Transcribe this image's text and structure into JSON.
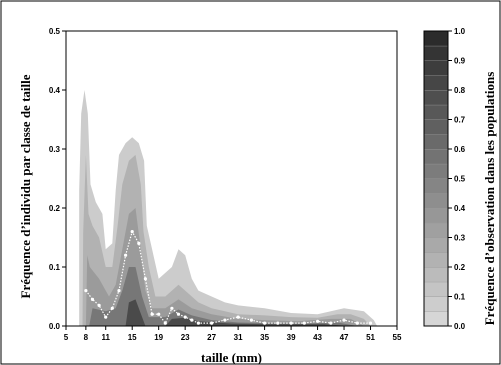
{
  "chart_data": {
    "type": "heatmap",
    "xlabel": "taille (mm)",
    "ylabel": "Fréquence d’individu par classe de taille",
    "colorbar_label": "Fréquence d’observation dans les populations",
    "xlim": [
      5,
      55
    ],
    "ylim": [
      0,
      0.5
    ],
    "x_ticks": [
      5,
      8,
      11,
      15,
      19,
      23,
      27,
      31,
      35,
      39,
      43,
      47,
      51,
      55
    ],
    "y_ticks": [
      0,
      0.1,
      0.2,
      0.3,
      0.4,
      0.5
    ],
    "y_tick_labels": [
      "0.0",
      "0.1",
      "0.2",
      "0.3",
      "0.4",
      "0.5"
    ],
    "colorbar_ticks": [
      "0.0",
      "0.1",
      "0.2",
      "0.3",
      "0.4",
      "0.5",
      "0.6",
      "0.7",
      "0.8",
      "0.9",
      "1.0"
    ],
    "colorbar_range": [
      0,
      1
    ],
    "density_regions": [
      {
        "level": 0.08,
        "points": [
          [
            7,
            0
          ],
          [
            7,
            0.23
          ],
          [
            7.3,
            0.36
          ],
          [
            7.8,
            0.4
          ],
          [
            8.3,
            0.36
          ],
          [
            8.7,
            0.24
          ],
          [
            9.5,
            0.21
          ],
          [
            10.5,
            0.19
          ],
          [
            11,
            0.13
          ],
          [
            12,
            0.14
          ],
          [
            12.5,
            0.23
          ],
          [
            13,
            0.29
          ],
          [
            14,
            0.31
          ],
          [
            15,
            0.32
          ],
          [
            16,
            0.31
          ],
          [
            16.8,
            0.28
          ],
          [
            17.2,
            0.17
          ],
          [
            18,
            0.13
          ],
          [
            19,
            0.08
          ],
          [
            20,
            0.09
          ],
          [
            21,
            0.1
          ],
          [
            22,
            0.13
          ],
          [
            23,
            0.12
          ],
          [
            24,
            0.08
          ],
          [
            25,
            0.06
          ],
          [
            27,
            0.05
          ],
          [
            29,
            0.04
          ],
          [
            31,
            0.035
          ],
          [
            35,
            0.03
          ],
          [
            39,
            0.022
          ],
          [
            43,
            0.02
          ],
          [
            47,
            0.03
          ],
          [
            50,
            0.025
          ],
          [
            51.5,
            0.01
          ],
          [
            52,
            0
          ]
        ]
      },
      {
        "level": 0.22,
        "points": [
          [
            7.5,
            0
          ],
          [
            7.6,
            0.16
          ],
          [
            8,
            0.29
          ],
          [
            8.4,
            0.19
          ],
          [
            9,
            0.17
          ],
          [
            10,
            0.15
          ],
          [
            11,
            0.1
          ],
          [
            12,
            0.1
          ],
          [
            12.8,
            0.17
          ],
          [
            13.5,
            0.24
          ],
          [
            14.5,
            0.28
          ],
          [
            15.5,
            0.29
          ],
          [
            16.3,
            0.24
          ],
          [
            16.7,
            0.16
          ],
          [
            17.5,
            0.1
          ],
          [
            18.5,
            0.05
          ],
          [
            20,
            0.05
          ],
          [
            21,
            0.06
          ],
          [
            22,
            0.07
          ],
          [
            23,
            0.06
          ],
          [
            25,
            0.04
          ],
          [
            27,
            0.03
          ],
          [
            31,
            0.02
          ],
          [
            35,
            0.018
          ],
          [
            39,
            0.015
          ],
          [
            43,
            0.014
          ],
          [
            46,
            0.02
          ],
          [
            48,
            0.02
          ],
          [
            50,
            0.012
          ],
          [
            51,
            0
          ]
        ]
      },
      {
        "level": 0.35,
        "points": [
          [
            8,
            0
          ],
          [
            8.2,
            0.12
          ],
          [
            8.6,
            0.1
          ],
          [
            10,
            0.08
          ],
          [
            11.5,
            0.05
          ],
          [
            12.5,
            0.07
          ],
          [
            13.5,
            0.13
          ],
          [
            14.5,
            0.19
          ],
          [
            15.5,
            0.2
          ],
          [
            16.3,
            0.13
          ],
          [
            17,
            0.06
          ],
          [
            18,
            0.03
          ],
          [
            20,
            0.03
          ],
          [
            22,
            0.045
          ],
          [
            24,
            0.03
          ],
          [
            27,
            0.02
          ],
          [
            31,
            0.012
          ],
          [
            35,
            0.01
          ],
          [
            40,
            0.008
          ],
          [
            45,
            0.012
          ],
          [
            48,
            0.012
          ],
          [
            50,
            0
          ]
        ]
      },
      {
        "level": 0.55,
        "points": [
          [
            8.5,
            0
          ],
          [
            9,
            0.03
          ],
          [
            11,
            0.025
          ],
          [
            12.5,
            0.03
          ],
          [
            13.5,
            0.06
          ],
          [
            14.5,
            0.1
          ],
          [
            15.5,
            0.1
          ],
          [
            16.5,
            0.05
          ],
          [
            17.5,
            0.015
          ],
          [
            20,
            0.015
          ],
          [
            22,
            0.028
          ],
          [
            24,
            0.018
          ],
          [
            27,
            0.01
          ],
          [
            31,
            0.006
          ],
          [
            35,
            0.005
          ],
          [
            41,
            0.004
          ],
          [
            46,
            0.006
          ],
          [
            49,
            0
          ]
        ]
      },
      {
        "level": 0.8,
        "points": [
          [
            14,
            0
          ],
          [
            14.5,
            0.04
          ],
          [
            15.5,
            0.045
          ],
          [
            16.5,
            0.015
          ],
          [
            17,
            0
          ],
          [
            20,
            0
          ],
          [
            21,
            0.012
          ],
          [
            23,
            0.014
          ],
          [
            25,
            0.008
          ],
          [
            30,
            0.004
          ],
          [
            36,
            0.003
          ],
          [
            44,
            0.003
          ],
          [
            48,
            0
          ]
        ]
      }
    ],
    "median_line": {
      "x": [
        8,
        9,
        10,
        11,
        12,
        13,
        14,
        15,
        16,
        17,
        18,
        19,
        20,
        21,
        22,
        23,
        24,
        25,
        27,
        29,
        31,
        33,
        35,
        37,
        39,
        41,
        43,
        45,
        47,
        49,
        51
      ],
      "y": [
        0.06,
        0.045,
        0.035,
        0.015,
        0.03,
        0.06,
        0.12,
        0.16,
        0.14,
        0.08,
        0.02,
        0.02,
        0.005,
        0.03,
        0.02,
        0.015,
        0.01,
        0.005,
        0.005,
        0.01,
        0.015,
        0.01,
        0.005,
        0.005,
        0.005,
        0.005,
        0.008,
        0.005,
        0.01,
        0.005,
        0.005
      ]
    }
  }
}
